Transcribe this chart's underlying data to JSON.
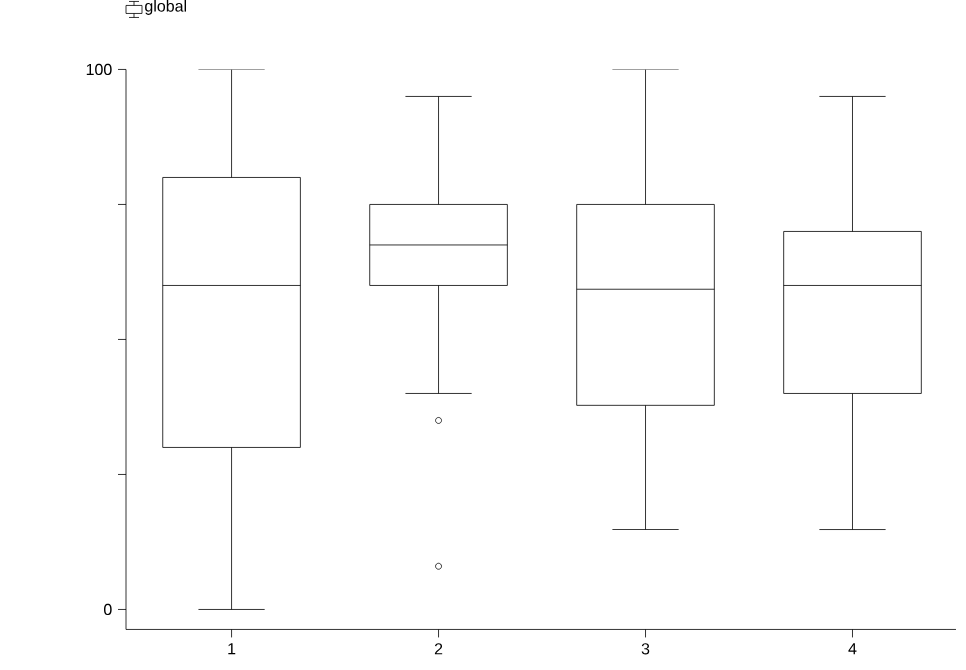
{
  "chart_data": {
    "type": "box",
    "categories": [
      "1",
      "2",
      "3",
      "4"
    ],
    "series": [
      {
        "name": "global",
        "color": "#000000",
        "boxes": [
          {
            "low": 0,
            "q1": 30,
            "median": 60,
            "q3": 80,
            "high": 100
          },
          {
            "low": 40,
            "q1": 60,
            "median": 67.5,
            "q3": 75,
            "high": 95,
            "outliers": [
              35,
              8
            ]
          },
          {
            "low": 14.8,
            "q1": 37.8,
            "median": 59.3,
            "q3": 75,
            "high": 100
          },
          {
            "low": 14.8,
            "q1": 40,
            "median": 60,
            "q3": 70,
            "high": 95
          }
        ]
      }
    ],
    "ylim": [
      -3.7,
      100
    ],
    "yticks": [
      0,
      {
        "value": 25,
        "label": null
      },
      {
        "value": 50,
        "label": null
      },
      {
        "value": 75,
        "label": null
      },
      100
    ],
    "legend": "top left"
  }
}
